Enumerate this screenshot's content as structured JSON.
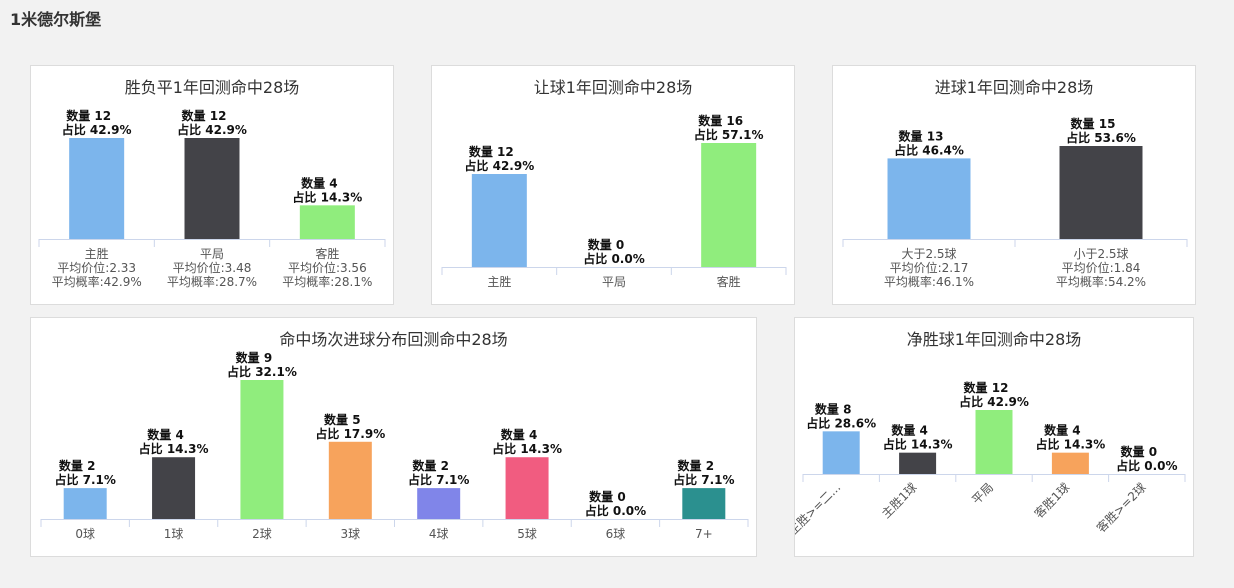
{
  "page": {
    "title": "1米德尔斯堡"
  },
  "colors": {
    "blue": "#7cb5ec",
    "dark": "#434348",
    "green": "#90ed7d",
    "orange": "#f7a35c",
    "purple": "#8085e9",
    "pink": "#f15c80",
    "teal": "#2b908f"
  },
  "chart_data": [
    {
      "id": "sfp",
      "type": "bar",
      "title": "胜负平1年回测命中28场",
      "categories": [
        [
          "主胜",
          "平均价位:2.33",
          "平均概率:42.9%"
        ],
        [
          "平局",
          "平均价位:3.48",
          "平均概率:28.7%"
        ],
        [
          "客胜",
          "平均价位:3.56",
          "平均概率:28.1%"
        ]
      ],
      "values": [
        12,
        12,
        4
      ],
      "percents": [
        "42.9%",
        "42.9%",
        "14.3%"
      ],
      "colors": [
        "#7cb5ec",
        "#434348",
        "#90ed7d"
      ],
      "ylim": [
        0,
        12
      ]
    },
    {
      "id": "rq",
      "type": "bar",
      "title": "让球1年回测命中28场",
      "categories": [
        [
          "主胜"
        ],
        [
          "平局"
        ],
        [
          "客胜"
        ]
      ],
      "values": [
        12,
        0,
        16
      ],
      "percents": [
        "42.9%",
        "0.0%",
        "57.1%"
      ],
      "colors": [
        "#7cb5ec",
        "#434348",
        "#90ed7d"
      ],
      "ylim": [
        0,
        16
      ]
    },
    {
      "id": "jq",
      "type": "bar",
      "title": "进球1年回测命中28场",
      "categories": [
        [
          "大于2.5球",
          "平均价位:2.17",
          "平均概率:46.1%"
        ],
        [
          "小于2.5球",
          "平均价位:1.84",
          "平均概率:54.2%"
        ]
      ],
      "values": [
        13,
        15
      ],
      "percents": [
        "46.4%",
        "53.6%"
      ],
      "colors": [
        "#7cb5ec",
        "#434348"
      ],
      "ylim": [
        0,
        15
      ]
    },
    {
      "id": "dist",
      "type": "bar",
      "title": "命中场次进球分布回测命中28场",
      "categories": [
        [
          "0球"
        ],
        [
          "1球"
        ],
        [
          "2球"
        ],
        [
          "3球"
        ],
        [
          "4球"
        ],
        [
          "5球"
        ],
        [
          "6球"
        ],
        [
          "7+"
        ]
      ],
      "values": [
        2,
        4,
        9,
        5,
        2,
        4,
        0,
        2
      ],
      "percents": [
        "7.1%",
        "14.3%",
        "32.1%",
        "17.9%",
        "7.1%",
        "14.3%",
        "0.0%",
        "7.1%"
      ],
      "colors": [
        "#7cb5ec",
        "#434348",
        "#90ed7d",
        "#f7a35c",
        "#8085e9",
        "#f15c80",
        "#e4d354",
        "#2b908f"
      ],
      "ylim": [
        0,
        9
      ]
    },
    {
      "id": "net",
      "type": "bar",
      "title": "净胜球1年回测命中28场",
      "categories": [
        [
          "主胜>=二..."
        ],
        [
          "主胜1球"
        ],
        [
          "平局"
        ],
        [
          "客胜1球"
        ],
        [
          "客胜>=2球"
        ]
      ],
      "values": [
        8,
        4,
        12,
        4,
        0
      ],
      "percents": [
        "28.6%",
        "14.3%",
        "42.9%",
        "14.3%",
        "0.0%"
      ],
      "colors": [
        "#7cb5ec",
        "#434348",
        "#90ed7d",
        "#f7a35c",
        "#8085e9"
      ],
      "ylim": [
        0,
        12
      ],
      "rotated_labels": true
    }
  ],
  "labels": {
    "count_prefix": "数量 ",
    "pct_prefix": "占比 "
  }
}
